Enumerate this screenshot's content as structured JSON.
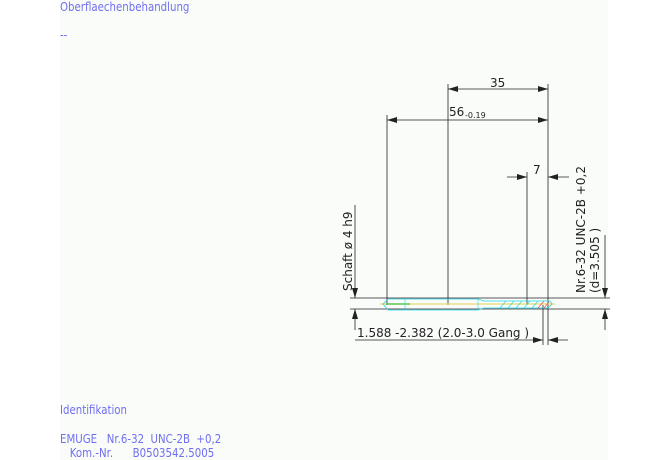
{
  "header": {
    "surface_label": "Oberflaechenbehandlung",
    "surface_value": "--"
  },
  "drawing": {
    "dim_length_35": "35",
    "dim_total_length": "56",
    "dim_total_tolerance": "-0.19",
    "dim_thread_length": "7",
    "shank_label": "Schaft ø 4 h9",
    "thread_label": "Nr.6-32 UNC-2B +0,2",
    "thread_diameter": "(d=3.505 )",
    "chamfer_label": "1.588 -2.382 (2.0-3.0 Gang  )",
    "colors": {
      "text": "#6f6ff0",
      "lines": "#222222",
      "tool_outline": "#22d8e8",
      "axis": "#e8d870",
      "hatch": "#e04060"
    }
  },
  "footer": {
    "ident_label": "Identifikation",
    "line1": "EMUGE   Nr.6-32  UNC-2B  +0,2",
    "line2": "   Kom.-Nr.      B0503542.5005"
  }
}
